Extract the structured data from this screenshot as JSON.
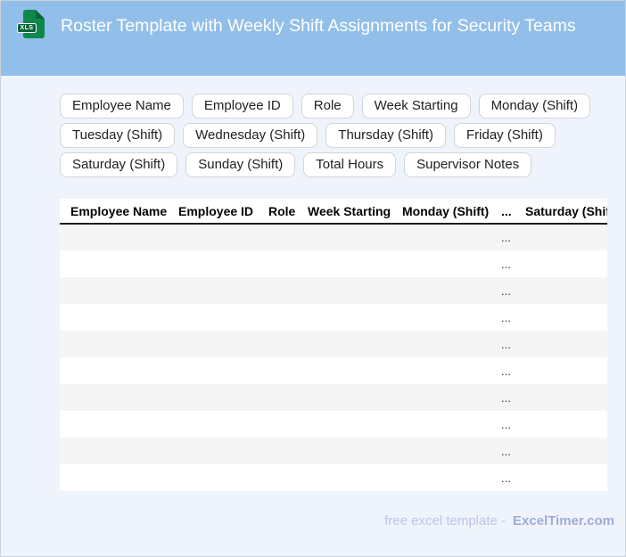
{
  "header": {
    "icon_label": "XLS",
    "title": "Roster Template with Weekly Shift Assignments for Security Teams"
  },
  "chips": [
    "Employee Name",
    "Employee ID",
    "Role",
    "Week Starting",
    "Monday (Shift)",
    "Tuesday (Shift)",
    "Wednesday (Shift)",
    "Thursday (Shift)",
    "Friday (Shift)",
    "Saturday (Shift)",
    "Sunday (Shift)",
    "Total Hours",
    "Supervisor Notes"
  ],
  "table": {
    "columns": [
      "Employee Name",
      "Employee ID",
      "Role",
      "Week Starting",
      "Monday (Shift)",
      "...",
      "Saturday (Shift)"
    ],
    "row_count": 10,
    "row_placeholder": "...",
    "ellipsis_column_index": 5
  },
  "footer": {
    "prefix": "free excel template -",
    "brand": "ExcelTimer.com"
  },
  "colors": {
    "header_bg": "#92bfe9",
    "page_bg": "#eff4fc",
    "icon_green": "#0e874c",
    "icon_green_dark": "#0b6539",
    "row_stripe": "#f5f5f5",
    "footer_text": "#bac4e4",
    "footer_brand": "#a0abd8"
  }
}
